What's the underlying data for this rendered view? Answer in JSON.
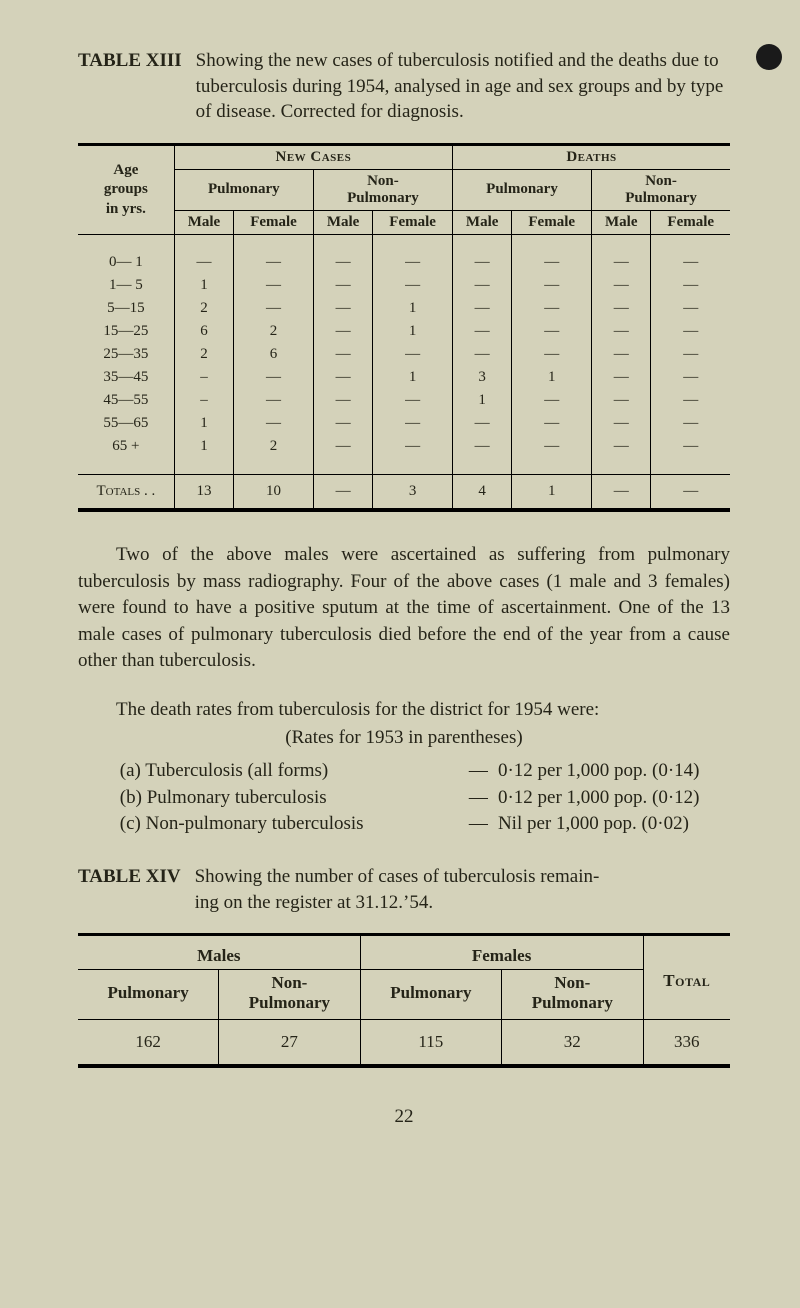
{
  "dot_icon": "black-circle",
  "table13": {
    "label": "TABLE XIII",
    "description": "Showing the new cases of tuberculosis notified and the deaths due to tuberculosis during 1954, analysed in age and sex groups and by type of disease. Corrected for diagnosis.",
    "left_header_lines": [
      "Age",
      "groups",
      "in yrs."
    ],
    "group_headers": {
      "new_cases": "New Cases",
      "deaths": "Deaths"
    },
    "sub_headers": {
      "pulmonary": "Pulmonary",
      "non_pulmonary": "Non-\nPulmonary"
    },
    "sex_headers": {
      "male": "Male",
      "female": "Female"
    },
    "row_labels": [
      "0— 1",
      "1— 5",
      "5—15",
      "15—25",
      "25—35",
      "35—45",
      "45—55",
      "55—65",
      "65 +"
    ],
    "rows": [
      [
        "—",
        "—",
        "—",
        "—",
        "—",
        "—",
        "—",
        "—"
      ],
      [
        "1",
        "—",
        "—",
        "—",
        "—",
        "—",
        "—",
        "—"
      ],
      [
        "2",
        "—",
        "—",
        "1",
        "—",
        "—",
        "—",
        "—"
      ],
      [
        "6",
        "2",
        "—",
        "1",
        "—",
        "—",
        "—",
        "—"
      ],
      [
        "2",
        "6",
        "—",
        "—",
        "—",
        "—",
        "—",
        "—"
      ],
      [
        "–",
        "—",
        "—",
        "1",
        "3",
        "1",
        "—",
        "—"
      ],
      [
        "–",
        "—",
        "—",
        "—",
        "1",
        "—",
        "—",
        "—"
      ],
      [
        "1",
        "—",
        "—",
        "—",
        "—",
        "—",
        "—",
        "—"
      ],
      [
        "1",
        "2",
        "—",
        "—",
        "—",
        "—",
        "—",
        "—"
      ]
    ],
    "totals_label": "Totals . .",
    "totals": [
      "13",
      "10",
      "—",
      "3",
      "4",
      "1",
      "—",
      "—"
    ]
  },
  "paragraph": "Two of the above males were ascertained as suffering from pulmonary tuberculosis by mass radiography. Four of the above cases (1 male and 3 females) were found to have a positive sputum at the time of ascertainment. One of the 13 male cases of pulmonary tuberculosis died before the end of the year from a cause other than tuberculosis.",
  "rates": {
    "header": "The death rates from tuberculosis for the district for 1954 were:",
    "sub": "(Rates for 1953 in parentheses)",
    "items": [
      {
        "label": "(a) Tuberculosis (all forms)",
        "val": "0·12 per 1,000 pop. (0·14)"
      },
      {
        "label": "(b) Pulmonary tuberculosis",
        "val": "0·12 per 1,000 pop. (0·12)"
      },
      {
        "label": "(c) Non-pulmonary tuberculosis",
        "val": "Nil per 1,000 pop. (0·02)"
      }
    ]
  },
  "table14": {
    "label": "TABLE XIV",
    "description": "Showing the number of cases of tuberculosis remain-\ning on the register at 31.12.’54.",
    "males": "Males",
    "females": "Females",
    "total": "Total",
    "pulmonary": "Pulmonary",
    "non_pulmonary": "Non-\nPulmonary",
    "values": {
      "m_p": "162",
      "m_np": "27",
      "f_p": "115",
      "f_np": "32",
      "total": "336"
    }
  },
  "page_number": "22"
}
